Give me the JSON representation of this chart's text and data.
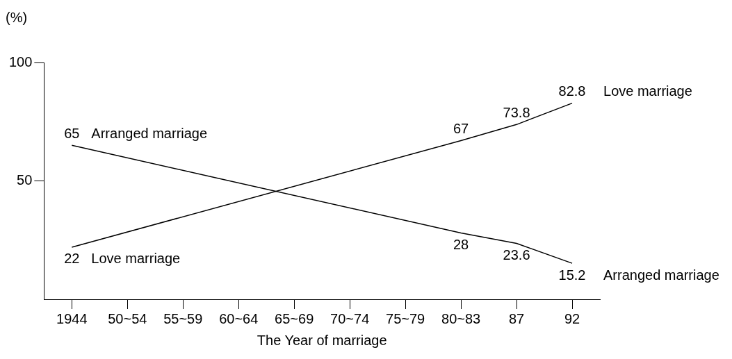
{
  "chart_data": {
    "type": "line",
    "xlabel": "The Year of marriage",
    "ylabel": "(%)",
    "categories": [
      "1944",
      "50~54",
      "55~59",
      "60~64",
      "65~69",
      "70~74",
      "75~79",
      "80~83",
      "87",
      "92"
    ],
    "series": [
      {
        "name": "Arranged marriage",
        "color": "#000000",
        "values": [
          65,
          null,
          null,
          null,
          null,
          null,
          null,
          28,
          23.6,
          15.2
        ]
      },
      {
        "name": "Love marriage",
        "color": "#000000",
        "values": [
          22,
          null,
          null,
          null,
          null,
          null,
          null,
          67,
          73.8,
          82.8
        ]
      }
    ],
    "ylim": [
      0,
      100
    ],
    "yticks": [
      50,
      100
    ],
    "data_labels": true,
    "grid": false,
    "marker": "none"
  }
}
